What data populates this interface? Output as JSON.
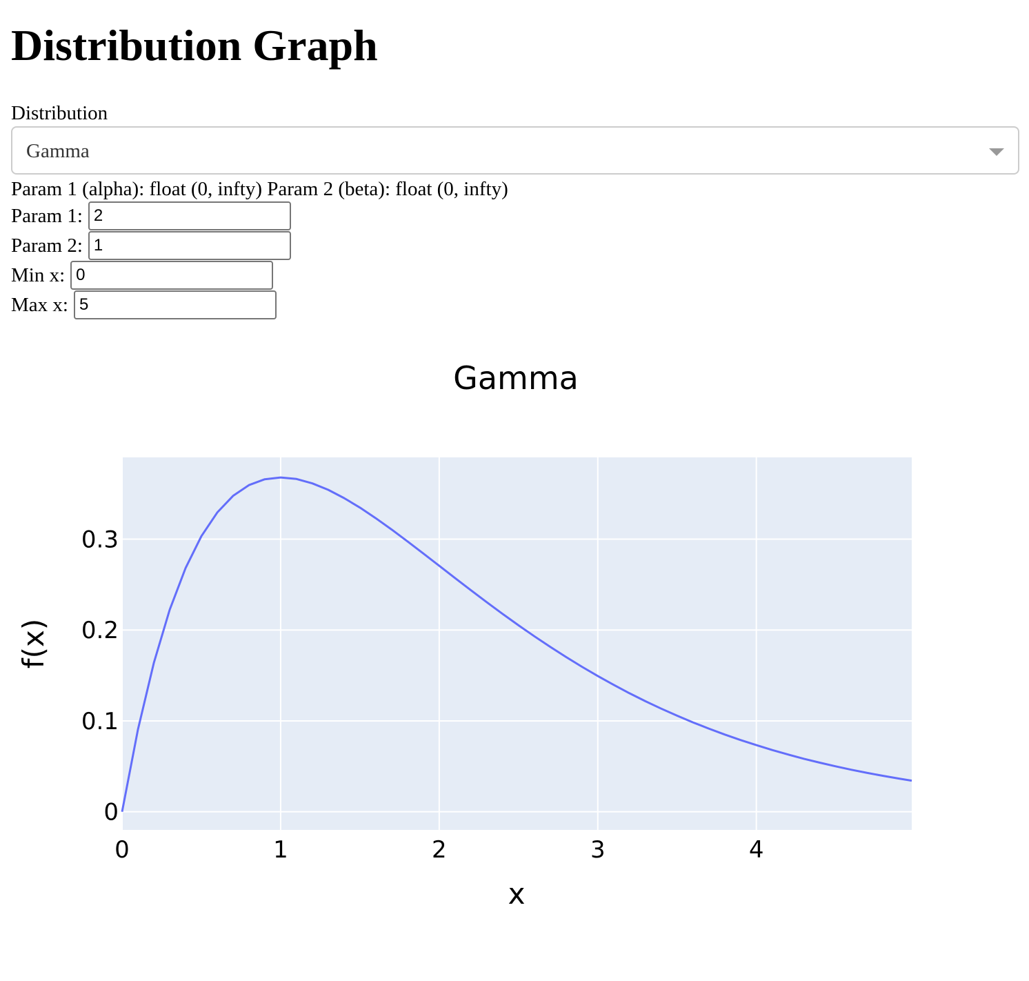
{
  "page": {
    "title": "Distribution Graph"
  },
  "form": {
    "distribution_label": "Distribution",
    "distribution_value": "Gamma",
    "params_description": "Param 1 (alpha): float (0, infty) Param 2 (beta): float (0, infty)",
    "fields": [
      {
        "label": "Param 1:",
        "value": "2"
      },
      {
        "label": "Param 2:",
        "value": "1"
      },
      {
        "label": "Min x:",
        "value": "0"
      },
      {
        "label": "Max x:",
        "value": "5"
      }
    ]
  },
  "chart_data": {
    "type": "line",
    "title": "Gamma",
    "xlabel": "x",
    "ylabel": "f(x)",
    "xlim": [
      0,
      4.98
    ],
    "ylim": [
      -0.02,
      0.39
    ],
    "x_ticks": [
      0,
      1,
      2,
      3,
      4
    ],
    "x_tick_labels": [
      "0",
      "1",
      "2",
      "3",
      "4"
    ],
    "y_ticks": [
      0,
      0.1,
      0.2,
      0.3
    ],
    "y_tick_labels": [
      "0",
      "0.1",
      "0.2",
      "0.3"
    ],
    "grid": true,
    "colors": {
      "line": "#636efa",
      "plot_bg": "#e5ecf6",
      "grid": "#ffffff"
    },
    "series": [
      {
        "x": [
          0,
          0.1,
          0.2,
          0.3,
          0.4,
          0.5,
          0.6,
          0.7,
          0.8,
          0.9,
          1.0,
          1.1,
          1.2,
          1.3,
          1.4,
          1.5,
          1.6,
          1.7,
          1.8,
          1.9,
          2.0,
          2.1,
          2.2,
          2.3,
          2.4,
          2.5,
          2.6,
          2.7,
          2.8,
          2.9,
          3.0,
          3.1,
          3.2,
          3.3,
          3.4,
          3.5,
          3.6,
          3.7,
          3.8,
          3.9,
          4.0,
          4.1,
          4.2,
          4.3,
          4.4,
          4.5,
          4.6,
          4.7,
          4.8,
          4.9,
          4.98
        ],
        "values": [
          0,
          0.0905,
          0.1637,
          0.2222,
          0.2681,
          0.3033,
          0.3293,
          0.3476,
          0.3595,
          0.3659,
          0.3679,
          0.3662,
          0.3614,
          0.3543,
          0.3452,
          0.3347,
          0.323,
          0.3106,
          0.2975,
          0.2842,
          0.2707,
          0.2572,
          0.2438,
          0.2306,
          0.2177,
          0.2052,
          0.1931,
          0.1815,
          0.1703,
          0.1596,
          0.1494,
          0.1397,
          0.1304,
          0.1217,
          0.1135,
          0.1057,
          0.0984,
          0.0915,
          0.085,
          0.0789,
          0.0733,
          0.0679,
          0.063,
          0.0583,
          0.054,
          0.05,
          0.0462,
          0.0427,
          0.0395,
          0.0365,
          0.0342
        ]
      }
    ]
  }
}
